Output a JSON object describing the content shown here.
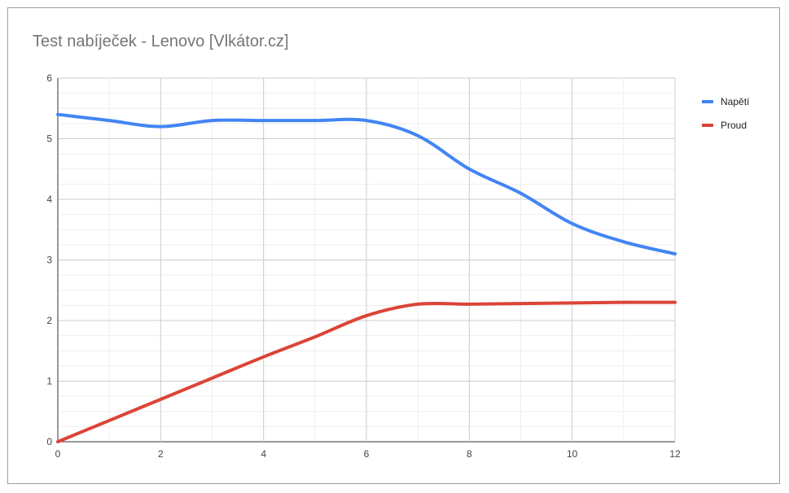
{
  "chart_data": {
    "type": "line",
    "title": "Test nabíječek - Lenovo [Vlkátor.cz]",
    "xlabel": "",
    "ylabel": "",
    "xlim": [
      0,
      12
    ],
    "ylim": [
      0,
      6
    ],
    "x_ticks": [
      0,
      2,
      4,
      6,
      8,
      10,
      12
    ],
    "y_ticks": [
      0,
      1,
      2,
      3,
      4,
      5,
      6
    ],
    "grid": true,
    "legend_position": "right",
    "x": [
      0,
      1,
      2,
      3,
      4,
      5,
      6,
      7,
      8,
      9,
      10,
      11,
      12
    ],
    "series": [
      {
        "name": "Napětí",
        "color": "#4285f4",
        "values": [
          5.4,
          5.3,
          5.2,
          5.3,
          5.3,
          5.3,
          5.3,
          5.05,
          4.5,
          4.1,
          3.6,
          3.3,
          3.1
        ]
      },
      {
        "name": "Proud",
        "color": "#db4437",
        "values": [
          0.0,
          0.35,
          0.7,
          1.05,
          1.4,
          1.73,
          2.08,
          2.27,
          2.27,
          2.28,
          2.29,
          2.3,
          2.3
        ]
      }
    ]
  }
}
